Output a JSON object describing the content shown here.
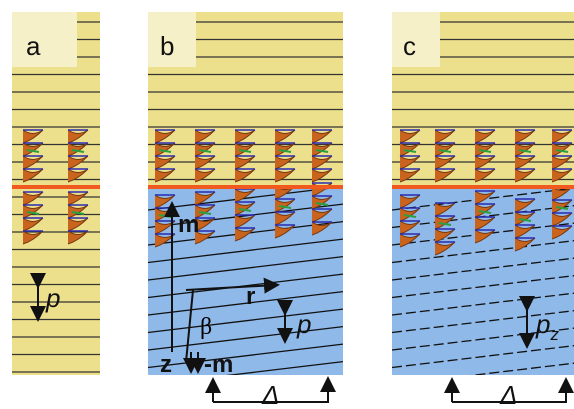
{
  "panels": [
    {
      "label": "a",
      "pitch_label": "p"
    },
    {
      "label": "b",
      "vector_m": "m",
      "vector_r": "r",
      "angle": "β",
      "vector_z": "z",
      "vector_minus_m": "-m",
      "pitch_label": "p",
      "period_label": "Δ"
    },
    {
      "label": "c",
      "pitch_label": "p",
      "pitch_subscript": "z",
      "period_label": "Δ"
    }
  ]
}
